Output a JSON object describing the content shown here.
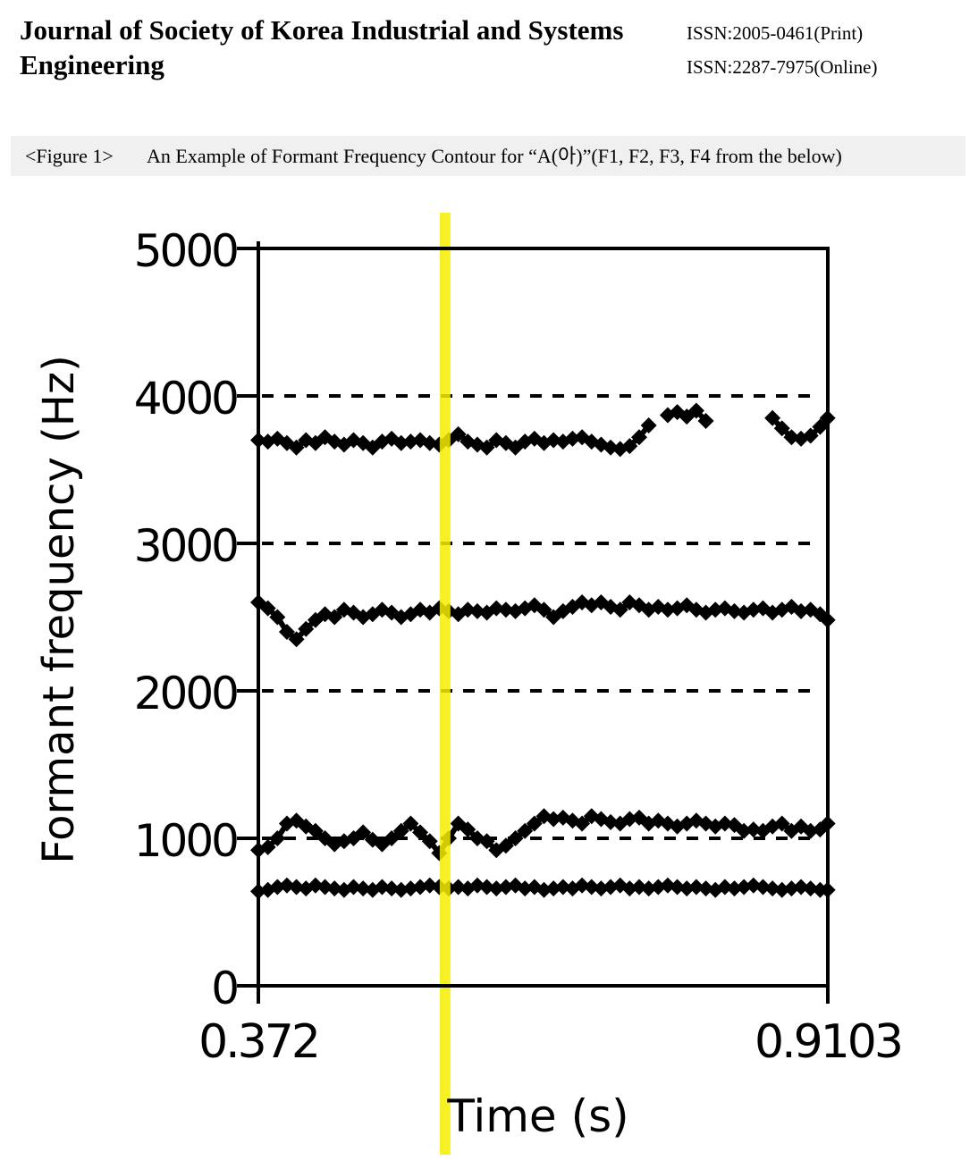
{
  "header": {
    "journal_title": "Journal of Society of Korea Industrial and Systems Engineering",
    "issn_print": "ISSN:2005-0461(Print)",
    "issn_online": "ISSN:2287-7975(Online)"
  },
  "figure": {
    "label": "<Figure 1>",
    "caption": "An Example of Formant Frequency Contour for “A(아)”(F1, F2, F3, F4 from the below)"
  },
  "chart_data": {
    "type": "scatter",
    "title": "",
    "xlabel": "Time (s)",
    "ylabel": "Formant frequency (Hz)",
    "xlim": [
      0.372,
      0.9103
    ],
    "ylim": [
      0,
      5000
    ],
    "x_tick_labels": [
      "0.372",
      "0.9103"
    ],
    "y_ticks": [
      0,
      1000,
      2000,
      3000,
      4000,
      5000
    ],
    "y_tick_labels": [
      "0",
      "1000",
      "2000",
      "3000",
      "4000",
      "5000"
    ],
    "dashed_gridlines_y": [
      1000,
      2000,
      3000,
      4000
    ],
    "cursor_x": 0.5485,
    "marker": "diamond",
    "series": [
      {
        "x": [
          0.372,
          0.381,
          0.39,
          0.399,
          0.408,
          0.417,
          0.426,
          0.435,
          0.444,
          0.453,
          0.462,
          0.471,
          0.48,
          0.489,
          0.498,
          0.507,
          0.516,
          0.525,
          0.534,
          0.543,
          0.552,
          0.561,
          0.57,
          0.579,
          0.588,
          0.597,
          0.606,
          0.615,
          0.624,
          0.633,
          0.642,
          0.651,
          0.66,
          0.669,
          0.678,
          0.687,
          0.696,
          0.705,
          0.714,
          0.723,
          0.732,
          0.741,
          0.75,
          0.759,
          0.768,
          0.777,
          0.786,
          0.795,
          0.804,
          0.813,
          0.822,
          0.831,
          0.84,
          0.849,
          0.858,
          0.867,
          0.876,
          0.885,
          0.894,
          0.903,
          0.91
        ],
        "values": [
          640,
          650,
          670,
          680,
          670,
          660,
          680,
          670,
          660,
          650,
          670,
          660,
          650,
          670,
          660,
          650,
          660,
          670,
          680,
          670,
          660,
          670,
          660,
          680,
          670,
          660,
          670,
          680,
          660,
          670,
          650,
          660,
          670,
          660,
          680,
          670,
          660,
          670,
          680,
          660,
          670,
          660,
          670,
          680,
          670,
          660,
          670,
          660,
          650,
          670,
          660,
          670,
          680,
          670,
          660,
          650,
          660,
          670,
          660,
          650,
          650
        ]
      },
      {
        "x": [
          0.372,
          0.381,
          0.39,
          0.399,
          0.408,
          0.417,
          0.426,
          0.435,
          0.444,
          0.453,
          0.462,
          0.471,
          0.48,
          0.489,
          0.498,
          0.507,
          0.516,
          0.525,
          0.534,
          0.543,
          0.552,
          0.561,
          0.57,
          0.579,
          0.588,
          0.597,
          0.606,
          0.615,
          0.624,
          0.633,
          0.642,
          0.651,
          0.66,
          0.669,
          0.678,
          0.687,
          0.696,
          0.705,
          0.714,
          0.723,
          0.732,
          0.741,
          0.75,
          0.759,
          0.768,
          0.777,
          0.786,
          0.795,
          0.804,
          0.813,
          0.822,
          0.831,
          0.84,
          0.849,
          0.858,
          0.867,
          0.876,
          0.885,
          0.894,
          0.903,
          0.91
        ],
        "values": [
          920,
          940,
          1000,
          1100,
          1120,
          1080,
          1050,
          1000,
          960,
          980,
          1000,
          1040,
          990,
          960,
          1000,
          1050,
          1100,
          1040,
          980,
          900,
          1000,
          1100,
          1060,
          1000,
          980,
          920,
          950,
          1000,
          1050,
          1100,
          1150,
          1130,
          1140,
          1120,
          1100,
          1150,
          1130,
          1110,
          1100,
          1130,
          1140,
          1100,
          1120,
          1100,
          1080,
          1100,
          1120,
          1100,
          1080,
          1100,
          1090,
          1050,
          1060,
          1050,
          1080,
          1100,
          1050,
          1080,
          1050,
          1060,
          1100
        ]
      },
      {
        "x": [
          0.372,
          0.381,
          0.39,
          0.399,
          0.408,
          0.417,
          0.426,
          0.435,
          0.444,
          0.453,
          0.462,
          0.471,
          0.48,
          0.489,
          0.498,
          0.507,
          0.516,
          0.525,
          0.534,
          0.543,
          0.552,
          0.561,
          0.57,
          0.579,
          0.588,
          0.597,
          0.606,
          0.615,
          0.624,
          0.633,
          0.642,
          0.651,
          0.66,
          0.669,
          0.678,
          0.687,
          0.696,
          0.705,
          0.714,
          0.723,
          0.732,
          0.741,
          0.75,
          0.759,
          0.768,
          0.777,
          0.786,
          0.795,
          0.804,
          0.813,
          0.822,
          0.831,
          0.84,
          0.849,
          0.858,
          0.867,
          0.876,
          0.885,
          0.894,
          0.903,
          0.91
        ],
        "values": [
          2600,
          2560,
          2500,
          2400,
          2350,
          2420,
          2480,
          2520,
          2500,
          2550,
          2530,
          2500,
          2520,
          2550,
          2530,
          2500,
          2520,
          2550,
          2530,
          2560,
          2540,
          2520,
          2550,
          2540,
          2530,
          2560,
          2550,
          2540,
          2560,
          2580,
          2550,
          2500,
          2540,
          2570,
          2600,
          2580,
          2600,
          2570,
          2550,
          2600,
          2580,
          2550,
          2570,
          2550,
          2560,
          2580,
          2550,
          2530,
          2550,
          2560,
          2540,
          2530,
          2550,
          2560,
          2530,
          2550,
          2570,
          2540,
          2550,
          2520,
          2480
        ]
      },
      {
        "x": [
          0.372,
          0.381,
          0.39,
          0.399,
          0.408,
          0.417,
          0.426,
          0.435,
          0.444,
          0.453,
          0.462,
          0.471,
          0.48,
          0.489,
          0.498,
          0.507,
          0.516,
          0.525,
          0.534,
          0.543,
          0.552,
          0.561,
          0.57,
          0.579,
          0.588,
          0.597,
          0.606,
          0.615,
          0.624,
          0.633,
          0.642,
          0.651,
          0.66,
          0.669,
          0.678,
          0.687,
          0.696,
          0.705,
          0.714,
          0.723,
          0.732,
          0.741,
          0.75,
          0.759,
          0.768,
          0.777,
          0.786,
          0.795,
          0.804,
          0.813,
          0.822,
          0.831,
          0.84,
          0.849,
          0.858,
          0.867,
          0.876,
          0.885,
          0.894,
          0.903,
          0.91
        ],
        "values": [
          3700,
          3690,
          3710,
          3680,
          3650,
          3700,
          3680,
          3720,
          3690,
          3670,
          3700,
          3680,
          3650,
          3690,
          3710,
          3680,
          3690,
          3700,
          3680,
          3670,
          3700,
          3740,
          3690,
          3670,
          3650,
          3700,
          3680,
          3650,
          3690,
          3710,
          3680,
          3700,
          3690,
          3710,
          3720,
          3690,
          3670,
          3650,
          3640,
          3660,
          3720,
          3800,
          null,
          3870,
          3890,
          3860,
          3900,
          3830,
          null,
          null,
          null,
          null,
          null,
          null,
          3850,
          3780,
          3720,
          3710,
          3730,
          3790,
          3850
        ]
      }
    ]
  }
}
